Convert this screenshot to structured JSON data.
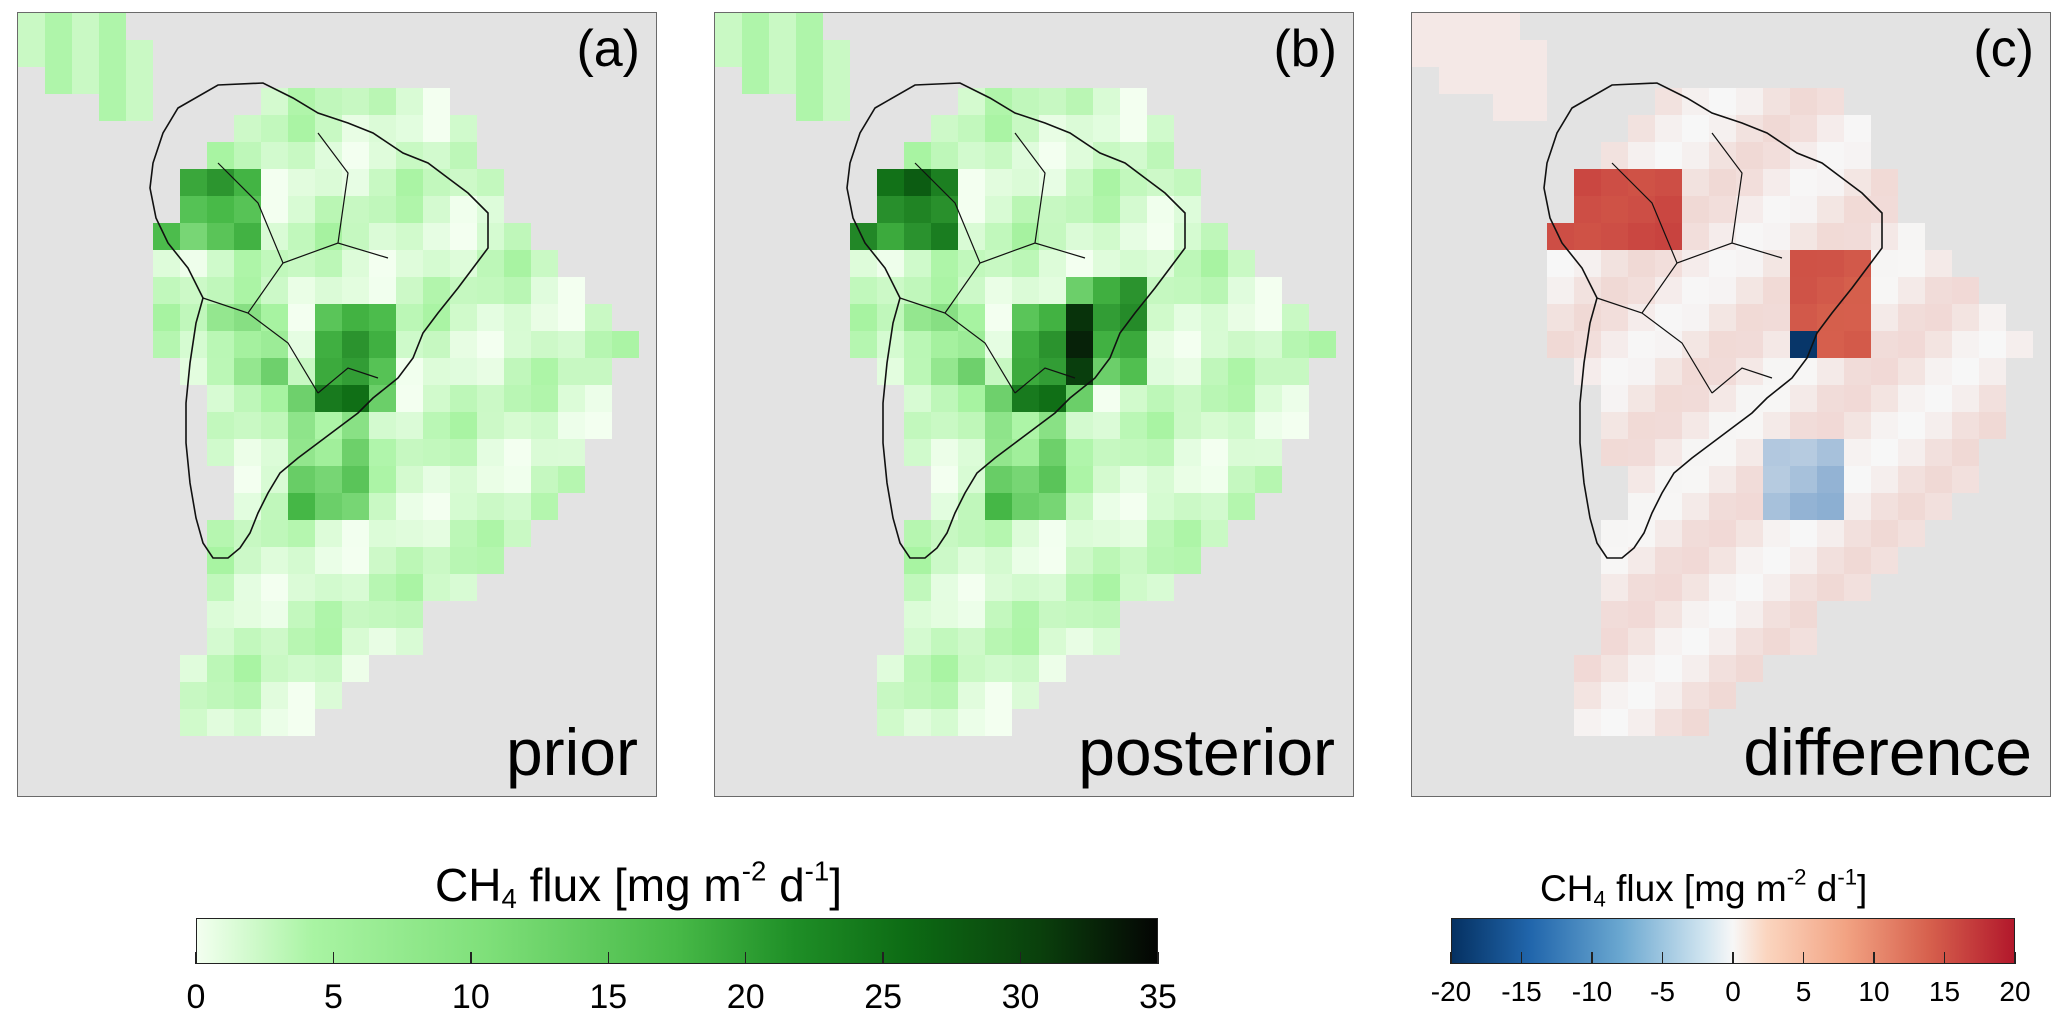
{
  "panels": [
    {
      "letter": "(a)",
      "name": "prior",
      "map_type": "prior-flux"
    },
    {
      "letter": "(b)",
      "name": "posterior",
      "map_type": "posterior-flux"
    },
    {
      "letter": "(c)",
      "name": "difference",
      "map_type": "difference-flux"
    }
  ],
  "colorbar_flux": {
    "title_main": "CH",
    "title_sub": "4",
    "title_mid1": " flux [mg m",
    "title_sup1": "-2",
    "title_mid2": " d",
    "title_sup2": "-1",
    "title_end": "]",
    "ticks": [
      "0",
      "5",
      "10",
      "15",
      "20",
      "25",
      "30",
      "35"
    ],
    "range": [
      0,
      35
    ],
    "colors": [
      "#f3fff0",
      "#a9f4a3",
      "#47b947",
      "#0d6b14",
      "#040504"
    ]
  },
  "colorbar_diff": {
    "title_main": "CH",
    "title_sub": "4",
    "title_mid1": " flux [mg m",
    "title_sup1": "-2",
    "title_mid2": " d",
    "title_sup2": "-1",
    "title_end": "]",
    "ticks": [
      "-20",
      "-15",
      "-10",
      "-5",
      "0",
      "5",
      "10",
      "15",
      "20"
    ],
    "range": [
      -20,
      20
    ],
    "colors": [
      "#053162",
      "#2166ac",
      "#f7f7f7",
      "#d6604d",
      "#b2182b"
    ]
  },
  "colors": {
    "ocean": "#e3e3e3",
    "coastline": "#111111"
  }
}
